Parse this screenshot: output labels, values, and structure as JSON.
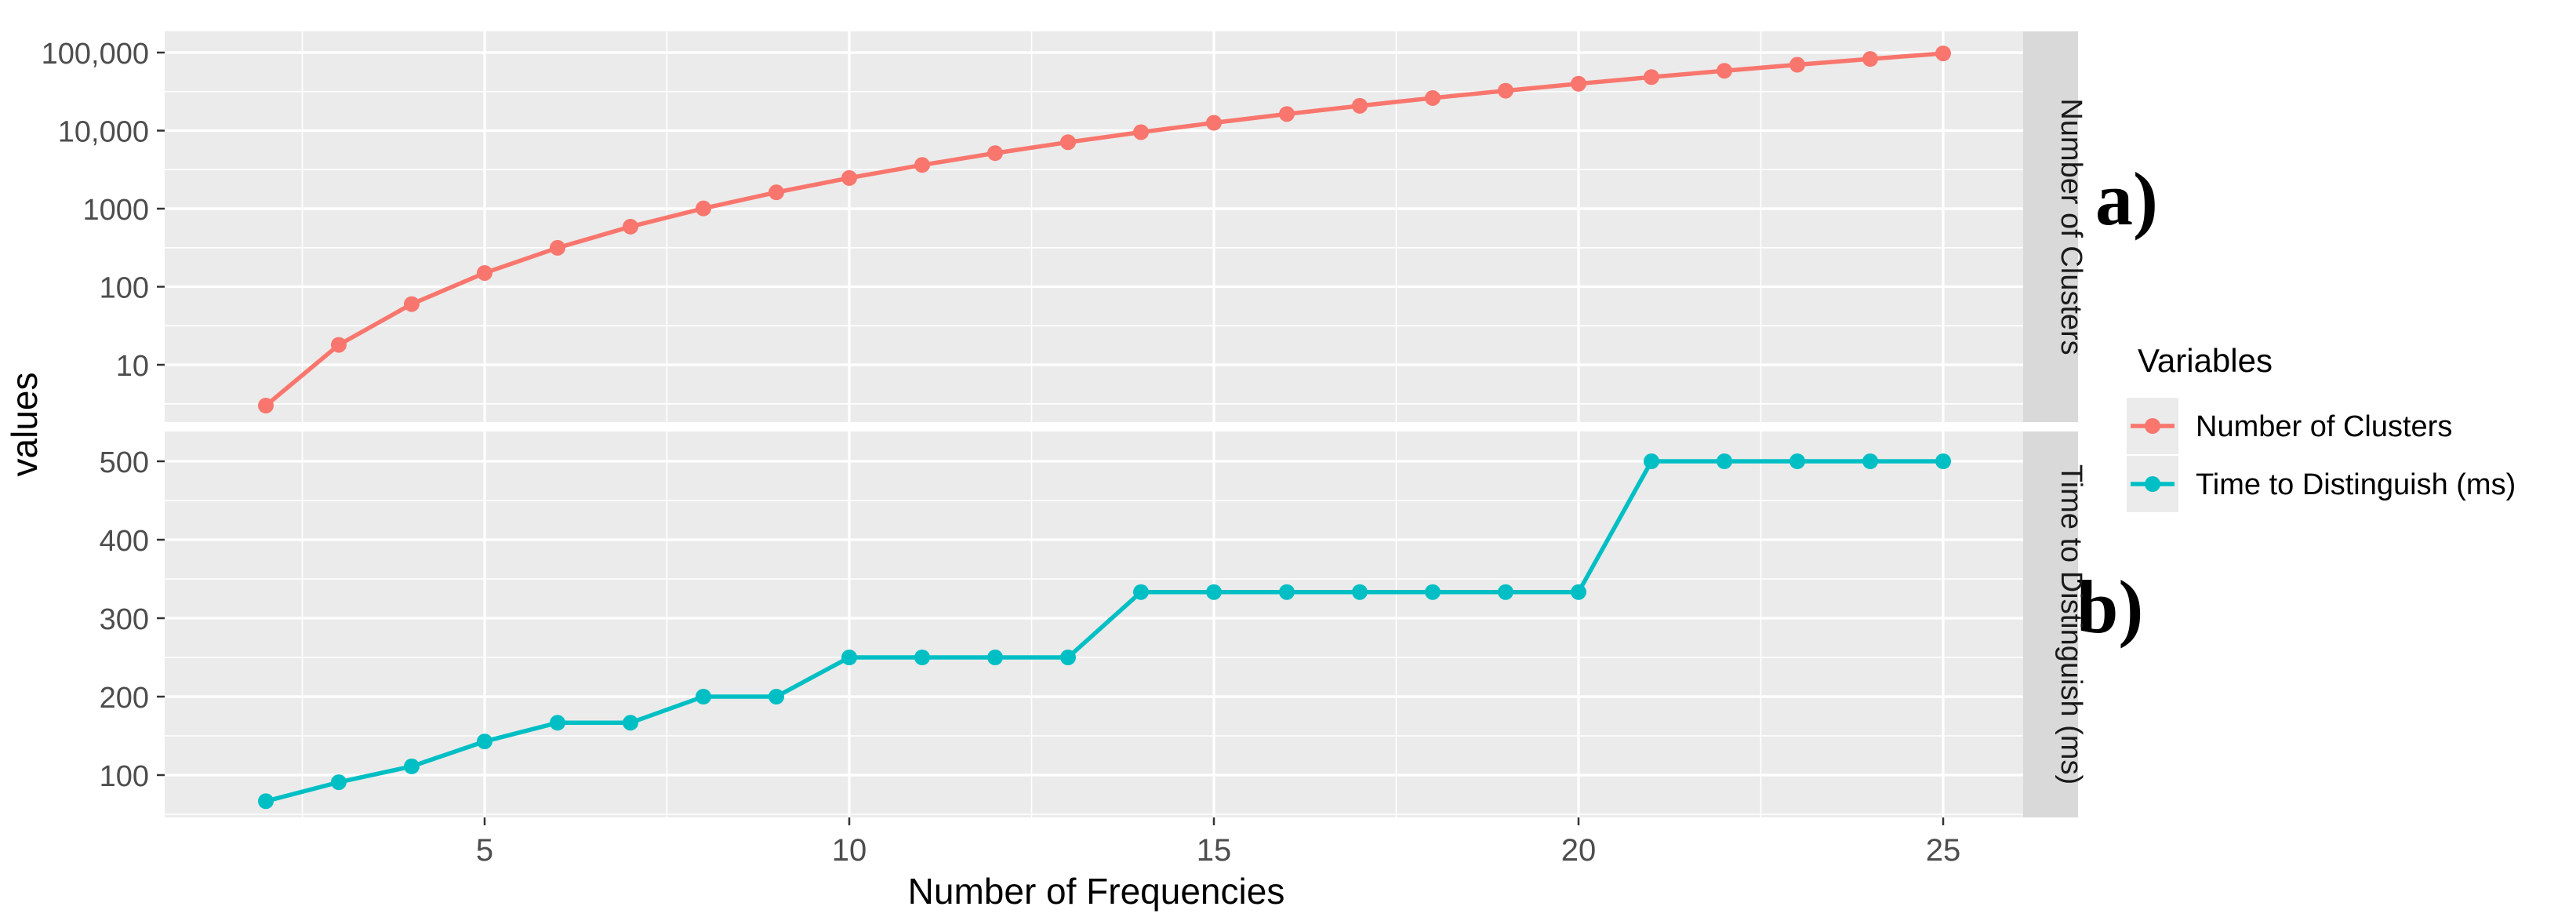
{
  "figure": {
    "ylabel": "values",
    "xlabel": "Number of Frequencies",
    "panel_a_label": "a)",
    "panel_b_label": "b)",
    "strip_a": "Number of Clusters",
    "strip_b": "Time to Distinguish (ms)",
    "legend": {
      "title": "Variables",
      "entries": [
        {
          "label": "Number of Clusters",
          "color": "#F8766D"
        },
        {
          "label": "Time to Distinguish (ms)",
          "color": "#00BFC4"
        }
      ]
    }
  },
  "colors": {
    "clusters_series": "#F8766D",
    "time_series": "#00BFC4",
    "panel_background": "#EBEBEB",
    "strip_background": "#D9D9D9",
    "gridline": "#FFFFFF",
    "tick_mark": "#333333",
    "tick_text": "#4D4D4D"
  },
  "x_axis": {
    "label": "Number of Frequencies",
    "ticks": [
      5,
      10,
      15,
      20,
      25
    ],
    "tick_labels": [
      "5",
      "10",
      "15",
      "20",
      "25"
    ],
    "minor": [
      2.5,
      7.5,
      12.5,
      17.5,
      22.5
    ],
    "xlim": [
      0.85,
      26.15
    ]
  },
  "chart_data": [
    {
      "type": "line",
      "facet": "Number of Clusters",
      "series": "Number of Clusters",
      "color": "#F8766D",
      "yscale": "log10",
      "ylim": [
        1.9,
        188000
      ],
      "y_ticks": [
        10,
        100,
        1000,
        10000,
        100000
      ],
      "y_tick_labels": [
        "10",
        "100",
        "1000",
        "10,000",
        "100,000"
      ],
      "y_minor": [
        3.16,
        31.6,
        316,
        3162,
        31623
      ],
      "x": [
        2,
        3,
        4,
        5,
        6,
        7,
        8,
        9,
        10,
        11,
        12,
        13,
        14,
        15,
        16,
        17,
        18,
        19,
        20,
        21,
        22,
        23,
        24,
        25
      ],
      "y": [
        3,
        18,
        60,
        150,
        315,
        588,
        1008,
        1620,
        2475,
        3630,
        5148,
        7098,
        9555,
        12600,
        16320,
        20808,
        26163,
        32490,
        39900,
        48510,
        58443,
        69828,
        82800,
        97500
      ],
      "panel_label": "a)"
    },
    {
      "type": "line",
      "facet": "Time to Distinguish (ms)",
      "series": "Time to Distinguish (ms)",
      "color": "#00BFC4",
      "yscale": "linear",
      "ylim": [
        46,
        538
      ],
      "y_ticks": [
        100,
        200,
        300,
        400,
        500
      ],
      "y_tick_labels": [
        "100",
        "200",
        "300",
        "400",
        "500"
      ],
      "y_minor": [
        50,
        150,
        250,
        350,
        450
      ],
      "x": [
        2,
        3,
        4,
        5,
        6,
        7,
        8,
        9,
        10,
        11,
        12,
        13,
        14,
        15,
        16,
        17,
        18,
        19,
        20,
        21,
        22,
        23,
        24,
        25
      ],
      "y": [
        66.7,
        90.9,
        111.1,
        142.9,
        166.7,
        166.7,
        200,
        200,
        250,
        250,
        250,
        250,
        333.3,
        333.3,
        333.3,
        333.3,
        333.3,
        333.3,
        333.3,
        500,
        500,
        500,
        500,
        500
      ],
      "panel_label": "b)"
    }
  ]
}
